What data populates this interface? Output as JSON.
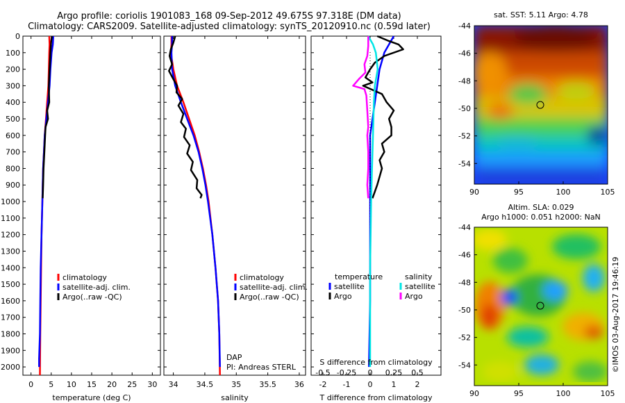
{
  "title_line1": "Argo profile: coriolis 1901083_168 09-Sep-2012 49.675S 97.318E (DM data)",
  "title_line2": "Climatology: CARS2009. Satellite-adjusted climatology: synTS_20120910.nc (0.59d later)",
  "footer_stamp": "©IMOS 03-Aug-2017 19:46:19",
  "colors": {
    "red": "#ff0000",
    "blue": "#0000ff",
    "black": "#000000",
    "cyan": "#00e5e5",
    "magenta": "#ff00ff"
  },
  "labels": {
    "temp_xlabel": "temperature (deg C)",
    "sal_xlabel": "salinity",
    "diff_xlabel_bottom": "T difference from climatology",
    "diff_xlabel_top": "S difference from climatology",
    "dap": "DAP",
    "pi": "PI: Andreas STERL",
    "map1_title": "sat. SST: 5.11  Argo: 4.78",
    "map2_title_1": "Altim. SLA: 0.029",
    "map2_title_2": "Argo h1000: 0.051  h2000: NaN"
  },
  "legend_main": [
    "climatology",
    "satellite-adj. clim.",
    "Argo(..raw -QC)"
  ],
  "legend_diff": {
    "col1_title": "temperature",
    "col2_title": "salinity",
    "col1_items": [
      "satellite",
      "Argo"
    ],
    "col2_items": [
      "satellite",
      "Argo"
    ]
  },
  "chart_data": [
    {
      "type": "line",
      "title": "",
      "xlabel": "temperature (deg C)",
      "ylabel": "",
      "xlim": [
        -2,
        32
      ],
      "ylim": [
        2050,
        0
      ],
      "x_ticks": [
        0,
        5,
        10,
        15,
        20,
        25,
        30
      ],
      "y_ticks": [
        0,
        100,
        200,
        300,
        400,
        500,
        600,
        700,
        800,
        900,
        1000,
        1100,
        1200,
        1300,
        1400,
        1500,
        1600,
        1700,
        1800,
        1900,
        2000
      ],
      "series": [
        {
          "name": "climatology",
          "color": "red",
          "points": [
            [
              4.5,
              0
            ],
            [
              4.6,
              50
            ],
            [
              4.5,
              100
            ],
            [
              4.4,
              200
            ],
            [
              4.3,
              300
            ],
            [
              4.0,
              400
            ],
            [
              3.7,
              500
            ],
            [
              3.4,
              600
            ],
            [
              3.2,
              700
            ],
            [
              3.0,
              800
            ],
            [
              2.9,
              900
            ],
            [
              2.8,
              1000
            ],
            [
              2.6,
              1200
            ],
            [
              2.5,
              1400
            ],
            [
              2.4,
              1600
            ],
            [
              2.3,
              1800
            ],
            [
              2.2,
              2050
            ]
          ]
        },
        {
          "name": "satellite-adj. clim.",
          "color": "blue",
          "points": [
            [
              5.5,
              0
            ],
            [
              5.4,
              50
            ],
            [
              5.1,
              100
            ],
            [
              4.8,
              200
            ],
            [
              4.6,
              300
            ],
            [
              4.2,
              400
            ],
            [
              3.8,
              500
            ],
            [
              3.4,
              600
            ],
            [
              3.2,
              700
            ],
            [
              3.0,
              800
            ],
            [
              2.9,
              900
            ],
            [
              2.8,
              1000
            ],
            [
              2.6,
              1200
            ],
            [
              2.4,
              1400
            ],
            [
              2.3,
              1600
            ],
            [
              2.2,
              1800
            ],
            [
              2.0,
              1950
            ],
            [
              2.0,
              2000
            ]
          ]
        },
        {
          "name": "Argo(..raw -QC)",
          "color": "black",
          "points": [
            [
              5.2,
              0
            ],
            [
              5.0,
              30
            ],
            [
              4.9,
              60
            ],
            [
              4.8,
              100
            ],
            [
              4.6,
              200
            ],
            [
              4.4,
              300
            ],
            [
              4.5,
              400
            ],
            [
              4.0,
              450
            ],
            [
              4.2,
              500
            ],
            [
              3.6,
              550
            ],
            [
              3.5,
              600
            ],
            [
              3.3,
              700
            ],
            [
              3.1,
              800
            ],
            [
              3.0,
              900
            ],
            [
              2.9,
              980
            ]
          ]
        }
      ]
    },
    {
      "type": "line",
      "title": "",
      "xlabel": "salinity",
      "ylabel": "",
      "xlim": [
        33.85,
        36.1
      ],
      "ylim": [
        2050,
        0
      ],
      "x_ticks": [
        34,
        34.5,
        35,
        35.5,
        36
      ],
      "series": [
        {
          "name": "climatology",
          "color": "red",
          "points": [
            [
              33.97,
              0
            ],
            [
              33.97,
              50
            ],
            [
              33.96,
              100
            ],
            [
              34.0,
              200
            ],
            [
              34.06,
              300
            ],
            [
              34.16,
              400
            ],
            [
              34.25,
              500
            ],
            [
              34.34,
              600
            ],
            [
              34.41,
              700
            ],
            [
              34.47,
              800
            ],
            [
              34.52,
              900
            ],
            [
              34.56,
              1000
            ],
            [
              34.62,
              1200
            ],
            [
              34.67,
              1400
            ],
            [
              34.71,
              1600
            ],
            [
              34.73,
              1800
            ],
            [
              34.74,
              2050
            ]
          ]
        },
        {
          "name": "satellite-adj. clim.",
          "color": "blue",
          "points": [
            [
              33.98,
              0
            ],
            [
              33.98,
              50
            ],
            [
              33.97,
              100
            ],
            [
              33.98,
              200
            ],
            [
              34.03,
              300
            ],
            [
              34.12,
              400
            ],
            [
              34.22,
              500
            ],
            [
              34.32,
              600
            ],
            [
              34.4,
              700
            ],
            [
              34.46,
              800
            ],
            [
              34.51,
              900
            ],
            [
              34.55,
              1000
            ],
            [
              34.62,
              1200
            ],
            [
              34.67,
              1400
            ],
            [
              34.71,
              1600
            ],
            [
              34.73,
              1800
            ],
            [
              34.74,
              2000
            ]
          ]
        },
        {
          "name": "Argo(..raw -QC)",
          "color": "black",
          "points": [
            [
              34.03,
              0
            ],
            [
              34.0,
              40
            ],
            [
              33.96,
              80
            ],
            [
              33.94,
              120
            ],
            [
              33.98,
              170
            ],
            [
              33.93,
              210
            ],
            [
              34.0,
              260
            ],
            [
              34.06,
              300
            ],
            [
              34.05,
              340
            ],
            [
              34.14,
              380
            ],
            [
              34.08,
              420
            ],
            [
              34.16,
              470
            ],
            [
              34.12,
              520
            ],
            [
              34.2,
              560
            ],
            [
              34.17,
              610
            ],
            [
              34.26,
              660
            ],
            [
              34.22,
              710
            ],
            [
              34.31,
              760
            ],
            [
              34.28,
              810
            ],
            [
              34.38,
              870
            ],
            [
              34.37,
              920
            ],
            [
              34.45,
              960
            ],
            [
              34.43,
              980
            ]
          ]
        }
      ]
    },
    {
      "type": "line",
      "title": "",
      "xlabel": "T difference from climatology",
      "x2label": "S difference from climatology",
      "xlim": [
        -2.5,
        3.0
      ],
      "x2lim": [
        -0.625,
        0.75
      ],
      "ylim": [
        2050,
        0
      ],
      "x_ticks": [
        -2,
        -1,
        0,
        1,
        2
      ],
      "x2_ticks": [
        -0.5,
        -0.25,
        0,
        0.25,
        0.5
      ],
      "x2_tick_labels": [
        "-0.5",
        "-0.25",
        "0",
        "0.25",
        "0.5"
      ],
      "series": [
        {
          "name": "temperature satellite",
          "color": "blue",
          "axis": "T",
          "points": [
            [
              1.0,
              0
            ],
            [
              0.8,
              50
            ],
            [
              0.6,
              100
            ],
            [
              0.4,
              200
            ],
            [
              0.3,
              300
            ],
            [
              0.2,
              400
            ],
            [
              0.1,
              500
            ],
            [
              0.0,
              600
            ],
            [
              0.0,
              800
            ],
            [
              0.0,
              1200
            ],
            [
              0.0,
              1600
            ],
            [
              -0.05,
              2000
            ]
          ]
        },
        {
          "name": "temperature Argo",
          "color": "black",
          "axis": "T",
          "points": [
            [
              0.3,
              0
            ],
            [
              0.8,
              30
            ],
            [
              1.2,
              50
            ],
            [
              1.4,
              80
            ],
            [
              0.6,
              120
            ],
            [
              0.2,
              160
            ],
            [
              0.0,
              200
            ],
            [
              -0.2,
              250
            ],
            [
              0.1,
              280
            ],
            [
              -0.3,
              300
            ],
            [
              0.5,
              350
            ],
            [
              0.7,
              400
            ],
            [
              1.0,
              450
            ],
            [
              0.8,
              500
            ],
            [
              0.9,
              550
            ],
            [
              0.9,
              600
            ],
            [
              0.5,
              650
            ],
            [
              0.6,
              700
            ],
            [
              0.4,
              750
            ],
            [
              0.5,
              800
            ],
            [
              0.3,
              900
            ],
            [
              0.1,
              980
            ]
          ]
        },
        {
          "name": "salinity satellite",
          "color": "cyan",
          "axis": "S",
          "points": [
            [
              -0.02,
              0
            ],
            [
              0.03,
              50
            ],
            [
              0.06,
              100
            ],
            [
              0.08,
              200
            ],
            [
              0.05,
              300
            ],
            [
              0.04,
              400
            ],
            [
              0.03,
              600
            ],
            [
              0.02,
              800
            ],
            [
              0.01,
              1000
            ],
            [
              0.0,
              1400
            ],
            [
              0.0,
              2000
            ]
          ]
        },
        {
          "name": "salinity Argo",
          "color": "magenta",
          "axis": "S",
          "points": [
            [
              -0.02,
              0
            ],
            [
              -0.02,
              60
            ],
            [
              -0.03,
              120
            ],
            [
              -0.06,
              170
            ],
            [
              -0.05,
              220
            ],
            [
              -0.12,
              260
            ],
            [
              -0.18,
              300
            ],
            [
              -0.06,
              320
            ],
            [
              -0.04,
              360
            ],
            [
              -0.03,
              450
            ],
            [
              -0.02,
              550
            ],
            [
              -0.03,
              600
            ],
            [
              -0.02,
              700
            ],
            [
              -0.02,
              800
            ],
            [
              -0.03,
              900
            ],
            [
              -0.02,
              980
            ]
          ]
        }
      ]
    },
    {
      "type": "heatmap",
      "title": "sat. SST: 5.11  Argo: 4.78",
      "xlim": [
        90,
        105
      ],
      "ylim": [
        -55.5,
        -44
      ],
      "x_ticks": [
        90,
        95,
        100,
        105
      ],
      "y_ticks": [
        -44,
        -46,
        -48,
        -50,
        -52,
        -54
      ],
      "marker": [
        97.3,
        -49.7
      ]
    },
    {
      "type": "heatmap",
      "title": "Altim. SLA: 0.029",
      "subtitle": "Argo h1000: 0.051  h2000: NaN",
      "xlim": [
        90,
        105
      ],
      "ylim": [
        -55.5,
        -44
      ],
      "x_ticks": [
        90,
        95,
        100,
        105
      ],
      "y_ticks": [
        -44,
        -46,
        -48,
        -50,
        -52,
        -54
      ],
      "marker": [
        97.3,
        -49.7
      ]
    }
  ]
}
